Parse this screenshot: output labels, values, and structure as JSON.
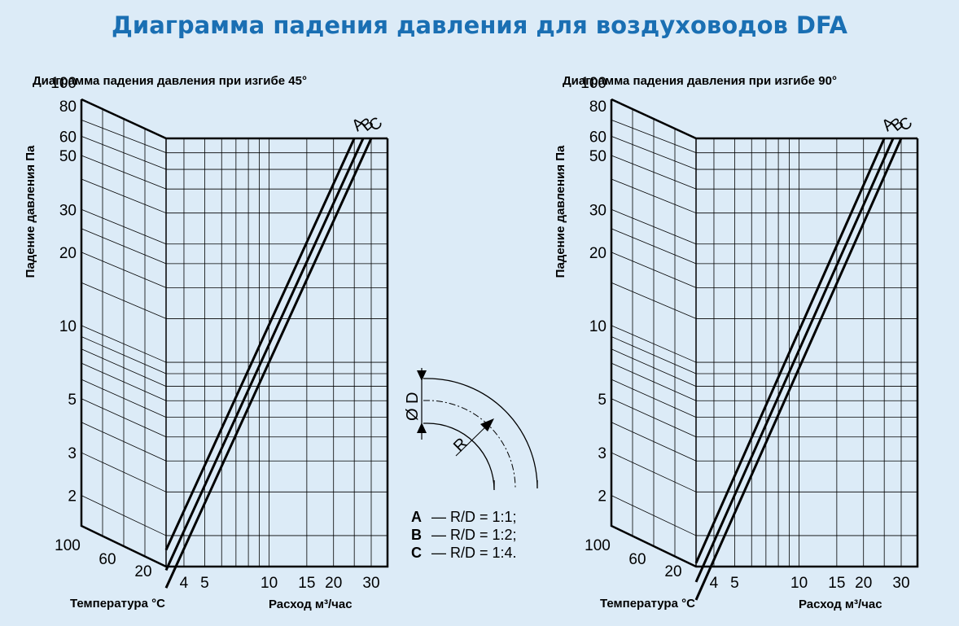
{
  "title": "Диаграмма падения давления для воздуховодов DFA",
  "chart_data": [
    {
      "type": "line",
      "subtitle": "Диаграмма падения давления при изгибе 45°",
      "ylabel": "Падение давления Па",
      "xlabel": "Расход м³/час",
      "temperature_label": "Температура °C",
      "y_scale": "log",
      "x_scale": "log",
      "y_ticks": [
        "100",
        "80",
        "60",
        "50",
        "30",
        "20",
        "10",
        "5",
        "3",
        "2"
      ],
      "x_ticks": [
        "4",
        "5",
        "10",
        "15",
        "20",
        "30"
      ],
      "temperature_ticks": [
        "100",
        "60",
        "20"
      ],
      "series": [
        {
          "name": "A",
          "x": [
            3.3,
            25
          ],
          "y": [
            1.75,
            80
          ]
        },
        {
          "name": "B",
          "x": [
            3.3,
            27.5
          ],
          "y": [
            1.45,
            80
          ]
        },
        {
          "name": "C",
          "x": [
            3.3,
            30
          ],
          "y": [
            1.23,
            80
          ]
        }
      ]
    },
    {
      "type": "line",
      "subtitle": "Диаграмма падения давления при изгибе 90°",
      "ylabel": "Падение давления Па",
      "xlabel": "Расход м³/час",
      "temperature_label": "Температура °C",
      "y_scale": "log",
      "x_scale": "log",
      "y_ticks": [
        "100",
        "80",
        "60",
        "50",
        "30",
        "20",
        "10",
        "5",
        "3",
        "2"
      ],
      "x_ticks": [
        "4",
        "5",
        "10",
        "15",
        "20",
        "30"
      ],
      "temperature_ticks": [
        "100",
        "60",
        "20"
      ],
      "series": [
        {
          "name": "A",
          "x": [
            3.3,
            25
          ],
          "y": [
            1.55,
            80
          ]
        },
        {
          "name": "B",
          "x": [
            3.3,
            27.5
          ],
          "y": [
            1.3,
            80
          ]
        },
        {
          "name": "C",
          "x": [
            3.3,
            30
          ],
          "y": [
            1.1,
            80
          ]
        }
      ]
    }
  ],
  "legend": {
    "items": [
      {
        "key": "A",
        "text": "— R/D = 1:1;"
      },
      {
        "key": "B",
        "text": "— R/D = 1:2;"
      },
      {
        "key": "C",
        "text": "— R/D = 1:4."
      }
    ],
    "diameter_symbol": "Ø",
    "diameter_label": "D",
    "radius_label": "R"
  }
}
